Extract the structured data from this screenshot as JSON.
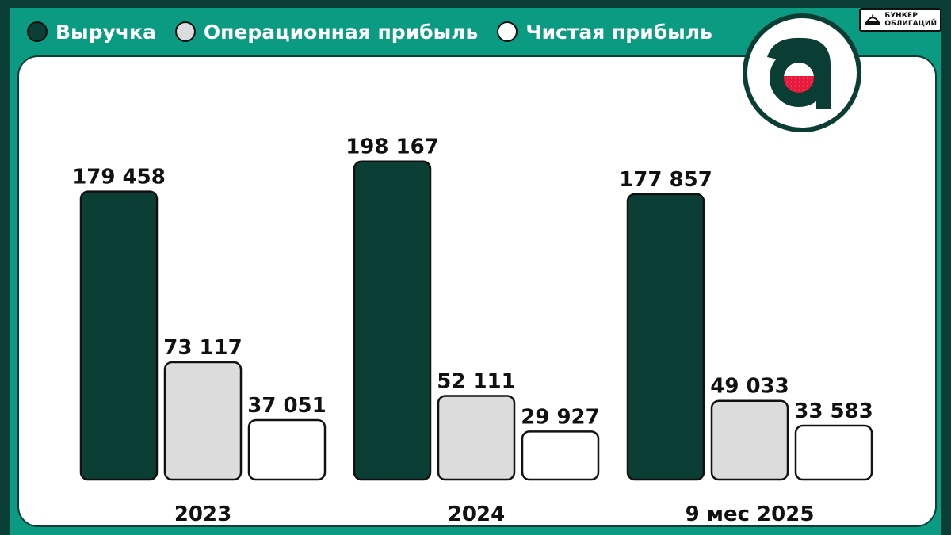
{
  "legend": [
    {
      "label": "Выручка",
      "color": "#0b3f35"
    },
    {
      "label": "Операционная прибыль",
      "color": "#dcdcdc"
    },
    {
      "label": "Чистая прибыль",
      "color": "#ffffff"
    }
  ],
  "brand": {
    "line1": "БУНКЕР",
    "line2": "ОБЛИГАЦИЙ"
  },
  "logo": {
    "letter": "a",
    "colors": {
      "ring": "#0a3d33",
      "letter": "#0a3d33",
      "fill": "#e8193c"
    }
  },
  "colors": {
    "background": "#0b9b83",
    "frame": "#0a3d33"
  },
  "chart_data": {
    "type": "bar",
    "categories": [
      "2023",
      "2024",
      "9 мес 2025"
    ],
    "series": [
      {
        "name": "Выручка",
        "color": "#0b3f35",
        "values": [
          179458,
          198167,
          177857
        ],
        "labels": [
          "179 458",
          "198 167",
          "177 857"
        ]
      },
      {
        "name": "Операционная прибыль",
        "color": "#dcdcdc",
        "values": [
          73117,
          52111,
          49033
        ],
        "labels": [
          "73 117",
          "52 111",
          "49 033"
        ]
      },
      {
        "name": "Чистая прибыль",
        "color": "#ffffff",
        "values": [
          37051,
          29927,
          33583
        ],
        "labels": [
          "37 051",
          "29 927",
          "33 583"
        ]
      }
    ],
    "ylim": [
      0,
      200000
    ],
    "grid": false,
    "legend_position": "top-left"
  }
}
